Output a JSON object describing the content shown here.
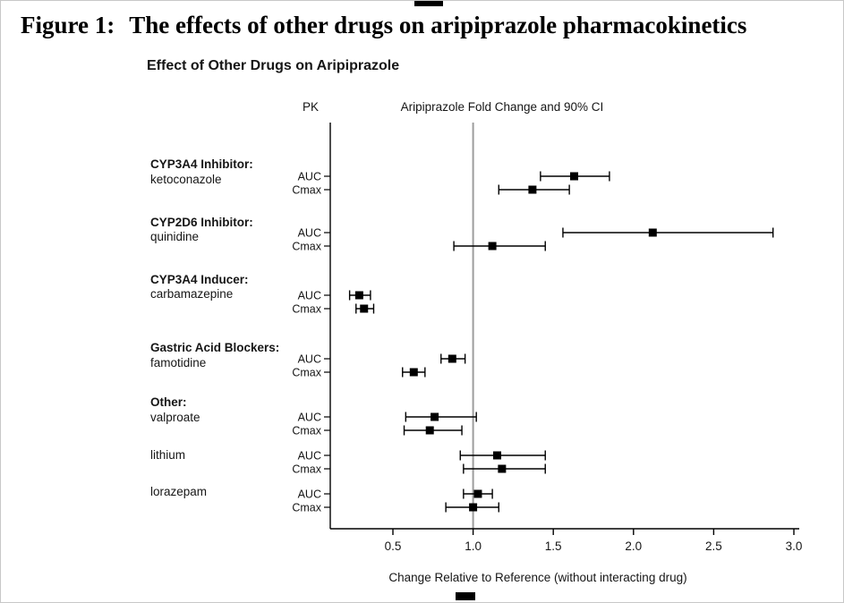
{
  "figure": {
    "number_label": "Figure 1:",
    "caption": "The effects of other drugs on aripiprazole pharmacokinetics"
  },
  "chart_data": {
    "type": "forest",
    "title": "Effect of Other Drugs on Aripiprazole",
    "columns": {
      "pk": "PK",
      "value": "Aripiprazole Fold Change and 90% CI"
    },
    "xlabel": "Change Relative to Reference (without interacting drug)",
    "x_ticks": [
      0.5,
      1.0,
      1.5,
      2.0,
      2.5,
      3.0
    ],
    "x_tick_labels": [
      "0.5",
      "1.0",
      "1.5",
      "2.0",
      "2.5",
      "3.0"
    ],
    "x_min": 0.11,
    "x_max": 3.02,
    "reference_line": 1.0,
    "legend_position": "none",
    "grid": false,
    "colors": {
      "marker": "#000000",
      "ci_line": "#000000",
      "reference_line": "#9c9c9c",
      "axis": "#000000"
    },
    "groups": [
      {
        "label": "CYP3A4 Inhibitor:",
        "drug": "ketoconazole",
        "rows": [
          {
            "pk": "AUC",
            "estimate": 1.63,
            "ci_low": 1.42,
            "ci_high": 1.85
          },
          {
            "pk": "Cmax",
            "estimate": 1.37,
            "ci_low": 1.16,
            "ci_high": 1.6
          }
        ]
      },
      {
        "label": "CYP2D6 Inhibitor:",
        "drug": "quinidine",
        "rows": [
          {
            "pk": "AUC",
            "estimate": 2.12,
            "ci_low": 1.56,
            "ci_high": 2.87
          },
          {
            "pk": "Cmax",
            "estimate": 1.12,
            "ci_low": 0.88,
            "ci_high": 1.45
          }
        ]
      },
      {
        "label": "CYP3A4 Inducer:",
        "drug": "carbamazepine",
        "rows": [
          {
            "pk": "AUC",
            "estimate": 0.29,
            "ci_low": 0.23,
            "ci_high": 0.36
          },
          {
            "pk": "Cmax",
            "estimate": 0.32,
            "ci_low": 0.27,
            "ci_high": 0.38
          }
        ]
      },
      {
        "label": "Gastric Acid Blockers:",
        "drug": "famotidine",
        "rows": [
          {
            "pk": "AUC",
            "estimate": 0.87,
            "ci_low": 0.8,
            "ci_high": 0.95
          },
          {
            "pk": "Cmax",
            "estimate": 0.63,
            "ci_low": 0.56,
            "ci_high": 0.7
          }
        ]
      },
      {
        "label": "Other:",
        "drug": "valproate",
        "rows": [
          {
            "pk": "AUC",
            "estimate": 0.76,
            "ci_low": 0.58,
            "ci_high": 1.02
          },
          {
            "pk": "Cmax",
            "estimate": 0.73,
            "ci_low": 0.57,
            "ci_high": 0.93
          }
        ]
      },
      {
        "label": "",
        "drug": "lithium",
        "rows": [
          {
            "pk": "AUC",
            "estimate": 1.15,
            "ci_low": 0.92,
            "ci_high": 1.45
          },
          {
            "pk": "Cmax",
            "estimate": 1.18,
            "ci_low": 0.94,
            "ci_high": 1.45
          }
        ]
      },
      {
        "label": "",
        "drug": "lorazepam",
        "rows": [
          {
            "pk": "AUC",
            "estimate": 1.03,
            "ci_low": 0.94,
            "ci_high": 1.12
          },
          {
            "pk": "Cmax",
            "estimate": 1.0,
            "ci_low": 0.83,
            "ci_high": 1.16
          }
        ]
      }
    ]
  }
}
